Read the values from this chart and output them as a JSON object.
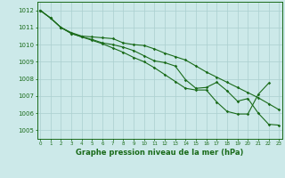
{
  "xlabel": "Graphe pression niveau de la mer (hPa)",
  "background_color": "#cce9e9",
  "grid_color": "#aacfcf",
  "line_color": "#1a6b1a",
  "x_values": [
    0,
    1,
    2,
    3,
    4,
    5,
    6,
    7,
    8,
    9,
    10,
    11,
    12,
    13,
    14,
    15,
    16,
    17,
    18,
    19,
    20,
    21,
    22,
    23
  ],
  "line1": [
    1012.0,
    1011.55,
    1011.0,
    1010.7,
    1010.5,
    1010.45,
    1010.4,
    1010.35,
    1010.1,
    1010.0,
    1009.95,
    1009.75,
    1009.5,
    1009.3,
    1009.1,
    1008.75,
    1008.4,
    1008.1,
    1007.8,
    1007.5,
    1007.2,
    1006.9,
    1006.55,
    1006.2
  ],
  "line2": [
    1012.0,
    1011.55,
    1011.0,
    1010.65,
    1010.45,
    1010.3,
    1010.1,
    1010.0,
    1009.85,
    1009.65,
    1009.35,
    1009.05,
    1008.95,
    1008.75,
    1007.95,
    1007.45,
    1007.5,
    1007.8,
    1007.3,
    1006.7,
    1006.85,
    1006.0,
    1005.35,
    1005.3
  ],
  "line3": [
    1012.0,
    1011.55,
    1011.0,
    1010.65,
    1010.45,
    1010.25,
    1010.05,
    1009.8,
    1009.55,
    1009.25,
    1009.0,
    1008.65,
    1008.25,
    1007.85,
    1007.45,
    1007.35,
    1007.35,
    1006.65,
    1006.1,
    1005.95,
    1005.95,
    1007.1,
    1007.75,
    null
  ],
  "ylim": [
    1004.5,
    1012.5
  ],
  "yticks": [
    1005,
    1006,
    1007,
    1008,
    1009,
    1010,
    1011,
    1012
  ],
  "xlim": [
    -0.3,
    23.3
  ]
}
